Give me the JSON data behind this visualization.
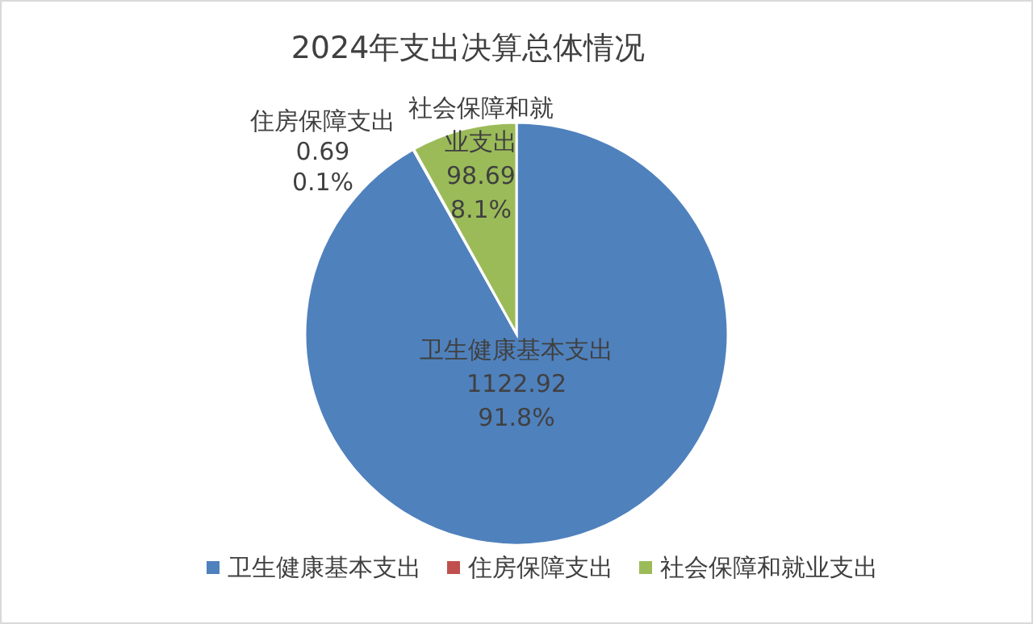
{
  "chart_data": {
    "type": "pie",
    "title": "2024年支出决算总体情况",
    "categories": [
      "卫生健康基本支出",
      "住房保障支出",
      "社会保障和就业支出"
    ],
    "values": [
      1122.92,
      0.69,
      98.69
    ],
    "colors": [
      "#4f81bd",
      "#c0504d",
      "#9bbb59"
    ],
    "value_labels": [
      "1122.92\n91.8%",
      "0.69\n0.1%",
      "98.69\n8.1%"
    ],
    "legend": "bottom"
  }
}
